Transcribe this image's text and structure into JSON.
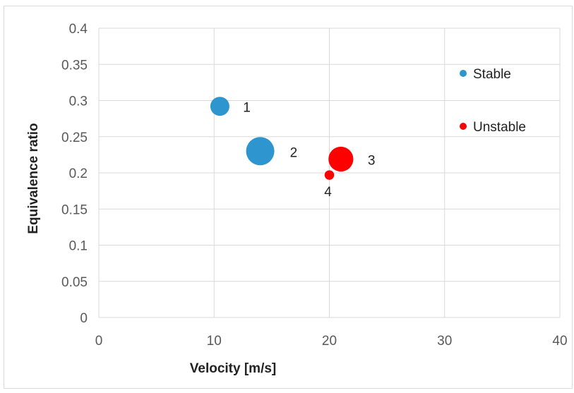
{
  "chart_data": {
    "type": "scatter",
    "title": "",
    "xlabel": "Velocity [m/s]",
    "ylabel": "Equivalence ratio",
    "xlim": [
      0,
      40
    ],
    "ylim": [
      0,
      0.4
    ],
    "xticks": [
      "0",
      "10",
      "20",
      "30",
      "40"
    ],
    "yticks": [
      "0",
      "0.05",
      "0.1",
      "0.15",
      "0.2",
      "0.25",
      "0.3",
      "0.35",
      "0.4"
    ],
    "grid": true,
    "legend_position": "right",
    "bubble_sizes_relative": true,
    "series": [
      {
        "name": "Stable",
        "color": "#2e95cf",
        "points": [
          {
            "x": 10.5,
            "y": 0.292,
            "size": 1.0,
            "label": "1"
          },
          {
            "x": 14.0,
            "y": 0.23,
            "size": 2.2,
            "label": "2"
          }
        ]
      },
      {
        "name": "Unstable",
        "color": "#ff0000",
        "points": [
          {
            "x": 21.0,
            "y": 0.219,
            "size": 1.7,
            "label": "3"
          },
          {
            "x": 20.0,
            "y": 0.197,
            "size": 0.25,
            "label": "4"
          }
        ]
      }
    ]
  }
}
